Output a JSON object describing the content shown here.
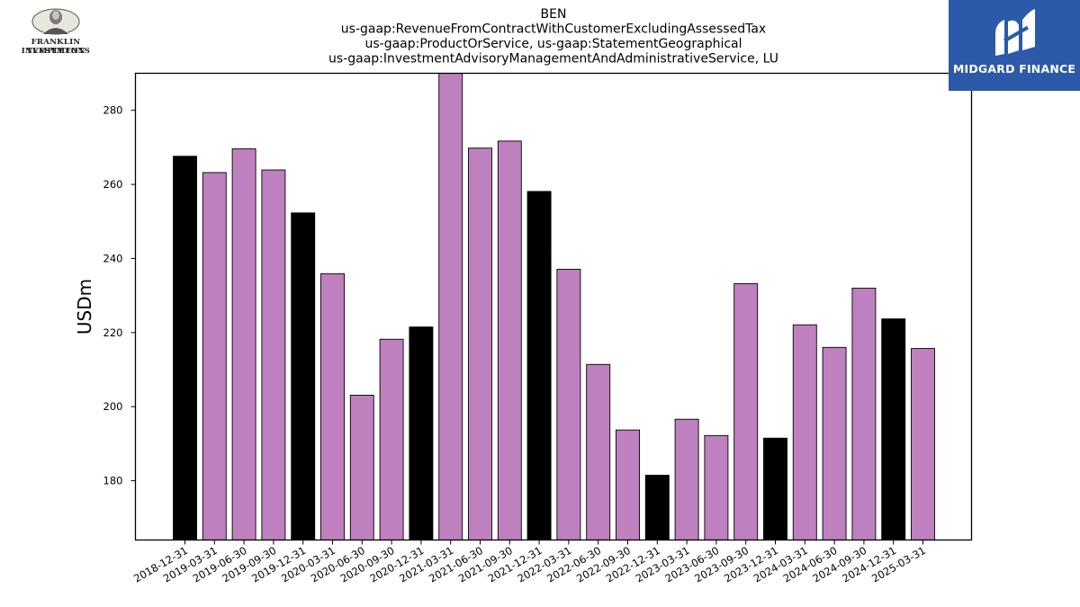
{
  "logos": {
    "left": {
      "line1": "FRANKLIN TEMPLETON",
      "line2": "INVESTMENTS"
    },
    "right": {
      "name": "MIDGARD FINANCE",
      "bg_color": "#2c5aa8"
    }
  },
  "chart_data": {
    "type": "bar",
    "title_lines": [
      "BEN",
      "us-gaap:RevenueFromContractWithCustomerExcludingAssessedTax",
      "us-gaap:ProductOrService, us-gaap:StatementGeographical",
      "us-gaap:InvestmentAdvisoryManagementAndAdministrativeService, LU"
    ],
    "ylabel": "USDm",
    "xlabel": "",
    "ylim": [
      164,
      290
    ],
    "yticks": [
      180,
      200,
      220,
      240,
      260,
      280
    ],
    "grid": false,
    "colors": {
      "quarter": "#bf80bf",
      "year_end": "#000000"
    },
    "categories": [
      "2018-12-31",
      "2019-03-31",
      "2019-06-30",
      "2019-09-30",
      "2019-12-31",
      "2020-03-31",
      "2020-06-30",
      "2020-09-30",
      "2020-12-31",
      "2021-03-31",
      "2021-06-30",
      "2021-09-30",
      "2021-12-31",
      "2022-03-31",
      "2022-06-30",
      "2022-09-30",
      "2022-12-31",
      "2023-03-31",
      "2023-06-30",
      "2023-09-30",
      "2023-12-31",
      "2024-03-31",
      "2024-06-30",
      "2024-09-30",
      "2024-12-31",
      "2025-03-31"
    ],
    "values": [
      267.6,
      263.2,
      269.6,
      263.9,
      252.3,
      235.9,
      203.1,
      218.2,
      221.5,
      290.0,
      269.8,
      271.7,
      258.1,
      237.1,
      211.4,
      193.7,
      181.5,
      196.6,
      192.2,
      233.2,
      191.5,
      222.1,
      216.0,
      232.0,
      223.7,
      215.7
    ],
    "year_end": [
      true,
      false,
      false,
      false,
      true,
      false,
      false,
      false,
      true,
      false,
      false,
      false,
      true,
      false,
      false,
      false,
      true,
      false,
      false,
      false,
      true,
      false,
      false,
      false,
      true,
      false
    ]
  }
}
